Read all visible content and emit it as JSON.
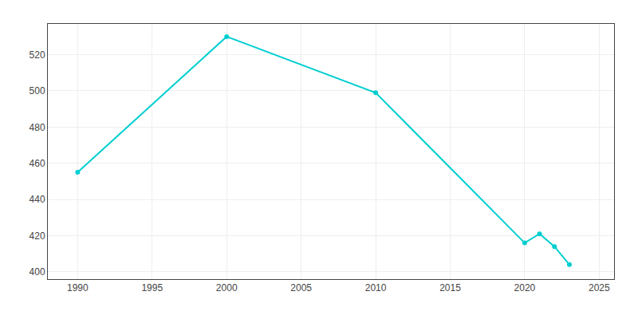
{
  "chart_data": {
    "type": "line",
    "x": [
      1990,
      2000,
      2010,
      2020,
      2021,
      2022,
      2023
    ],
    "values": [
      455,
      530,
      499,
      416,
      421,
      414,
      404
    ],
    "color": "#00CED1",
    "marker": "circle",
    "xlim": [
      1988,
      2026
    ],
    "ylim": [
      396,
      537
    ],
    "xticks": [
      1990,
      1995,
      2000,
      2005,
      2010,
      2015,
      2020,
      2025
    ],
    "yticks": [
      400,
      420,
      440,
      460,
      480,
      500,
      520
    ],
    "grid": true
  }
}
